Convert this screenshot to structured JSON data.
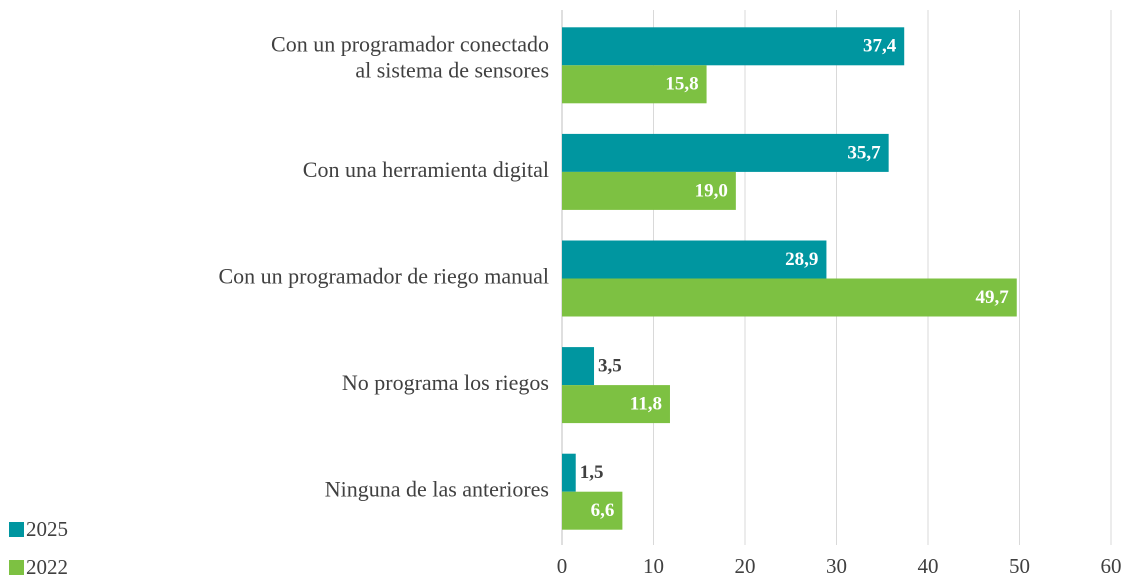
{
  "chart_data": {
    "type": "bar",
    "orientation": "horizontal",
    "categories": [
      "Con un programador conectado\nal sistema de sensores",
      "Con una herramienta digital",
      "Con un programador de riego manual",
      "No programa los riegos",
      "Ninguna de las anteriores"
    ],
    "series": [
      {
        "name": "2025",
        "color": "#0096a0",
        "values": [
          37.4,
          35.7,
          28.9,
          3.5,
          1.5
        ],
        "value_labels": [
          "37,4",
          "35,7",
          "28,9",
          "3,5",
          "1,5"
        ]
      },
      {
        "name": "2022",
        "color": "#7dc142",
        "values": [
          15.8,
          19.0,
          49.7,
          11.8,
          6.6
        ],
        "value_labels": [
          "15,8",
          "19,0",
          "49,7",
          "11,8",
          "6,6"
        ]
      }
    ],
    "xlim": [
      0,
      60
    ],
    "xticks": [
      0,
      10,
      20,
      30,
      40,
      50,
      60
    ],
    "grid": true,
    "legend": "bottom-left"
  }
}
